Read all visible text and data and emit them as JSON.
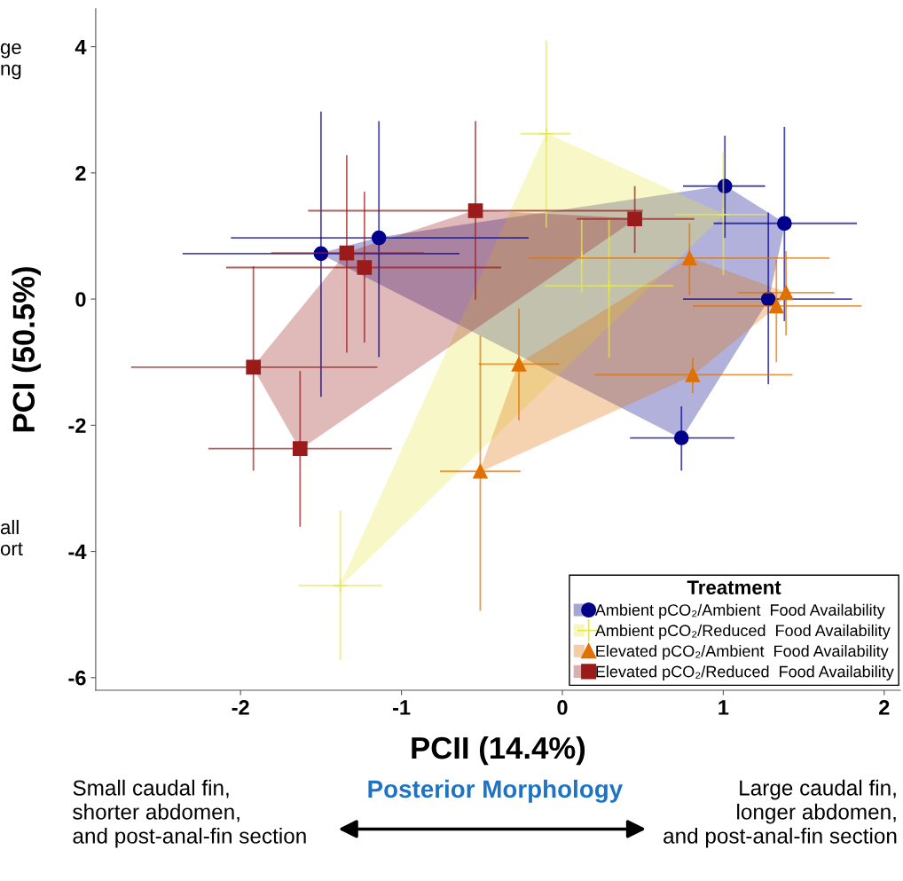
{
  "chart_data": {
    "type": "scatter",
    "xlabel": "PCII (14.4%)",
    "ylabel": "PCI (50.5%)",
    "legend_title": "Treatment",
    "xlim": [
      -2.9,
      2.1
    ],
    "ylim": [
      -6.2,
      4.6
    ],
    "xticks": [
      -2,
      -1,
      0,
      1,
      2
    ],
    "yticks": [
      -6,
      -4,
      -2,
      0,
      2,
      4
    ],
    "grid": false,
    "legend": "bottom right",
    "series": [
      {
        "name": "Ambient pCO₂/Ambient  Food Availability",
        "color": "#00008b",
        "marker": "circle",
        "x": [
          -1.5,
          -1.14,
          1.01,
          1.38,
          1.28,
          0.74
        ],
        "values": [
          0.72,
          0.97,
          1.79,
          1.2,
          0.0,
          -2.2
        ],
        "xerrors": [
          [
            -2.36,
            -0.64
          ],
          [
            -2.06,
            -0.21
          ],
          [
            0.75,
            1.26
          ],
          [
            0.94,
            1.83
          ],
          [
            0.75,
            1.8
          ],
          [
            0.42,
            1.07
          ]
        ],
        "errors": [
          [
            -1.55,
            2.97
          ],
          [
            -0.92,
            2.82
          ],
          [
            0.97,
            2.59
          ],
          [
            -0.35,
            2.73
          ],
          [
            -1.35,
            1.37
          ],
          [
            -2.72,
            -1.7
          ]
        ]
      },
      {
        "name": "Ambient pCO₂/Reduced  Food Availability",
        "color": "#e8e84a",
        "marker": "cross",
        "x": [
          -0.1,
          -1.38,
          1.0,
          0.12,
          0.29
        ],
        "values": [
          2.62,
          -4.54,
          1.34,
          0.65,
          0.21
        ],
        "xerrors": [
          [
            -0.26,
            0.05
          ],
          [
            -1.64,
            -1.12
          ],
          [
            0.7,
            1.27
          ],
          null,
          [
            -0.11,
            0.69
          ]
        ],
        "errors": [
          [
            1.13,
            4.1
          ],
          [
            -5.72,
            -3.35
          ],
          [
            0.38,
            2.32
          ],
          [
            0.1,
            1.27
          ],
          [
            -0.93,
            1.27
          ]
        ]
      },
      {
        "name": "Elevated pCO₂/Ambient  Food Availability",
        "color": "#e07000",
        "marker": "triangle",
        "x": [
          0.79,
          1.39,
          1.33,
          0.81,
          -0.27,
          -0.51
        ],
        "values": [
          0.65,
          0.1,
          -0.11,
          -1.2,
          -1.03,
          -2.73
        ],
        "xerrors": [
          [
            -0.21,
            1.66
          ],
          [
            1.09,
            1.69
          ],
          [
            0.81,
            1.86
          ],
          [
            0.2,
            1.43
          ],
          [
            -0.52,
            -0.02
          ],
          [
            -0.76,
            -0.26
          ]
        ],
        "errors": [
          [
            0.06,
            1.2
          ],
          [
            -0.58,
            0.76
          ],
          [
            -1.0,
            0.62
          ],
          [
            -1.49,
            -0.93
          ],
          [
            -1.92,
            -0.15
          ],
          [
            -4.94,
            -0.58
          ]
        ]
      },
      {
        "name": "Elevated pCO₂/Reduced  Food Availability",
        "color": "#9b1b1b",
        "marker": "square",
        "x": [
          -1.92,
          -1.63,
          -1.34,
          -1.23,
          -0.54,
          0.45
        ],
        "values": [
          -1.08,
          -2.37,
          0.73,
          0.5,
          1.4,
          1.27
        ],
        "xerrors": [
          [
            -2.68,
            -1.15
          ],
          [
            -2.2,
            -1.06
          ],
          [
            -1.81,
            -0.86
          ],
          [
            -2.09,
            -0.38
          ],
          [
            -1.58,
            0.5
          ],
          [
            0.09,
            0.82
          ]
        ],
        "errors": [
          [
            -2.72,
            0.52
          ],
          [
            -3.61,
            -1.14
          ],
          [
            -0.85,
            2.28
          ],
          [
            -0.69,
            1.7
          ],
          [
            -0.01,
            2.82
          ],
          [
            0.73,
            1.79
          ]
        ]
      }
    ],
    "annotations": [
      "ge\nng",
      "all\nort",
      "Small caudal fin,\nshorter abdomen,\nand post-anal-fin section",
      "Posterior Morphology",
      "Large caudal fin,\nlonger abdomen,\nand post-anal-fin section"
    ]
  }
}
